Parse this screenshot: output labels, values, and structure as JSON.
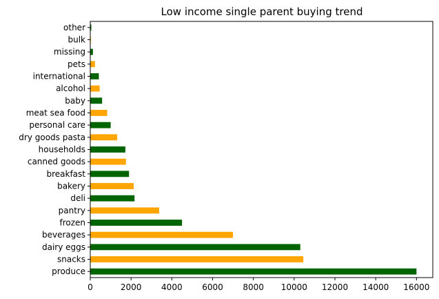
{
  "chart_data": {
    "type": "bar",
    "orientation": "horizontal",
    "title": "Low income single parent buying trend",
    "xlabel": "",
    "ylabel": "",
    "xlim": [
      0,
      16800
    ],
    "x_ticks": [
      0,
      2000,
      4000,
      6000,
      8000,
      10000,
      12000,
      14000,
      16000
    ],
    "grid": false,
    "categories": [
      "produce",
      "snacks",
      "dairy eggs",
      "beverages",
      "frozen",
      "pantry",
      "deli",
      "bakery",
      "breakfast",
      "canned goods",
      "households",
      "dry goods pasta",
      "personal care",
      "meat sea food",
      "baby",
      "alcohol",
      "international",
      "pets",
      "missing",
      "bulk",
      "other"
    ],
    "values": [
      16000,
      10450,
      10300,
      7000,
      4500,
      3380,
      2170,
      2130,
      1900,
      1750,
      1720,
      1320,
      1000,
      830,
      580,
      460,
      420,
      230,
      130,
      30,
      50
    ],
    "colors": [
      "#006400",
      "#ffa500"
    ]
  }
}
